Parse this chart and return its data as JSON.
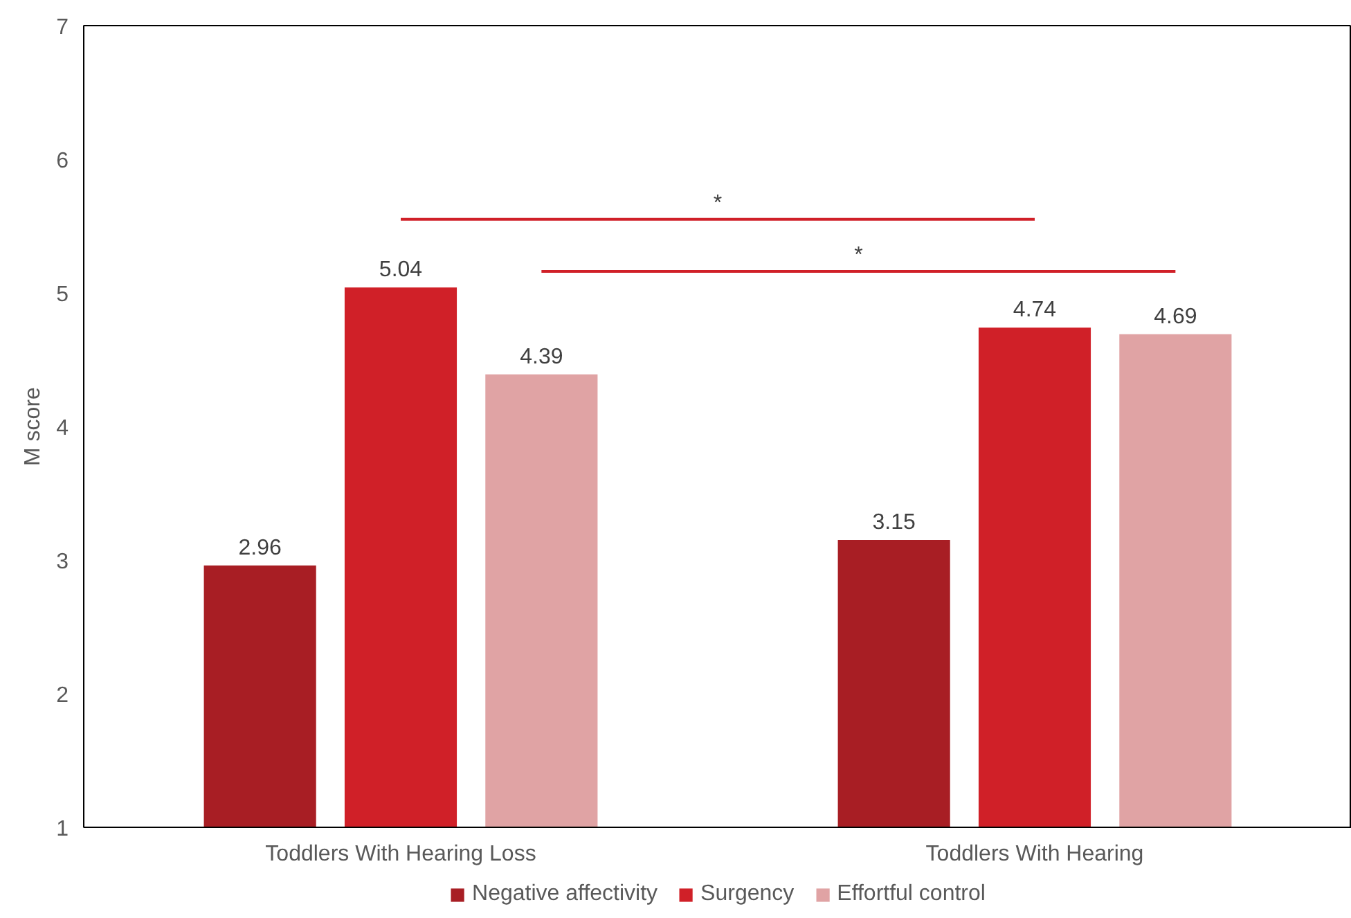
{
  "chart_data": {
    "type": "bar",
    "ylabel": "M score",
    "categories": [
      "Toddlers With Hearing Loss",
      "Toddlers With Hearing"
    ],
    "series": [
      {
        "name": "Negative affectivity",
        "color": "#a81e24",
        "values": [
          2.96,
          3.15
        ]
      },
      {
        "name": "Surgency",
        "color": "#d02028",
        "values": [
          5.04,
          4.74
        ]
      },
      {
        "name": "Effortful control",
        "color": "#e0a3a4",
        "values": [
          4.39,
          4.69
        ]
      }
    ],
    "ylim": [
      1,
      7
    ],
    "yticks": [
      1,
      2,
      3,
      4,
      5,
      6,
      7
    ],
    "grid": false,
    "legend": "bottom",
    "data_labels": true,
    "annotations": [
      "*",
      "*"
    ]
  }
}
